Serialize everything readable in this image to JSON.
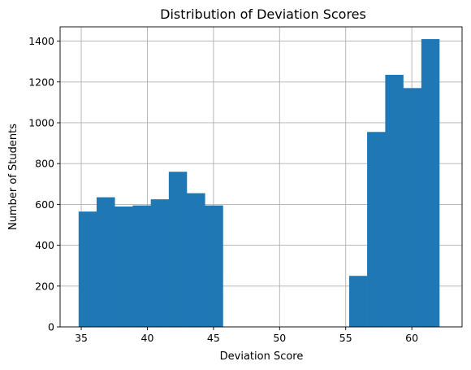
{
  "chart_data": {
    "type": "bar",
    "subtype": "histogram",
    "title": "Distribution of Deviation Scores",
    "xlabel": "Deviation Score",
    "ylabel": "Number of Students",
    "xlim": [
      33.4,
      63.8
    ],
    "ylim": [
      0,
      1470
    ],
    "xticks": [
      35,
      40,
      45,
      50,
      55,
      60
    ],
    "yticks": [
      0,
      200,
      400,
      600,
      800,
      1000,
      1200,
      1400
    ],
    "grid": true,
    "bar_color": "#1f77b4",
    "bins": [
      {
        "x0": 34.8,
        "x1": 36.16,
        "value": 565
      },
      {
        "x0": 36.16,
        "x1": 37.53,
        "value": 635
      },
      {
        "x0": 37.53,
        "x1": 38.89,
        "value": 590
      },
      {
        "x0": 38.89,
        "x1": 40.26,
        "value": 595
      },
      {
        "x0": 40.26,
        "x1": 41.62,
        "value": 625
      },
      {
        "x0": 41.62,
        "x1": 42.98,
        "value": 760
      },
      {
        "x0": 42.98,
        "x1": 44.35,
        "value": 655
      },
      {
        "x0": 44.35,
        "x1": 45.71,
        "value": 595
      },
      {
        "x0": 45.71,
        "x1": 47.08,
        "value": 0
      },
      {
        "x0": 47.08,
        "x1": 48.44,
        "value": 0
      },
      {
        "x0": 48.44,
        "x1": 49.8,
        "value": 0
      },
      {
        "x0": 49.8,
        "x1": 51.17,
        "value": 0
      },
      {
        "x0": 51.17,
        "x1": 52.53,
        "value": 0
      },
      {
        "x0": 52.53,
        "x1": 53.9,
        "value": 0
      },
      {
        "x0": 53.9,
        "x1": 55.26,
        "value": 0
      },
      {
        "x0": 55.26,
        "x1": 56.62,
        "value": 250
      },
      {
        "x0": 56.62,
        "x1": 57.99,
        "value": 955
      },
      {
        "x0": 57.99,
        "x1": 59.35,
        "value": 1235
      },
      {
        "x0": 59.35,
        "x1": 60.72,
        "value": 1170
      },
      {
        "x0": 60.72,
        "x1": 62.08,
        "value": 1410
      }
    ]
  }
}
